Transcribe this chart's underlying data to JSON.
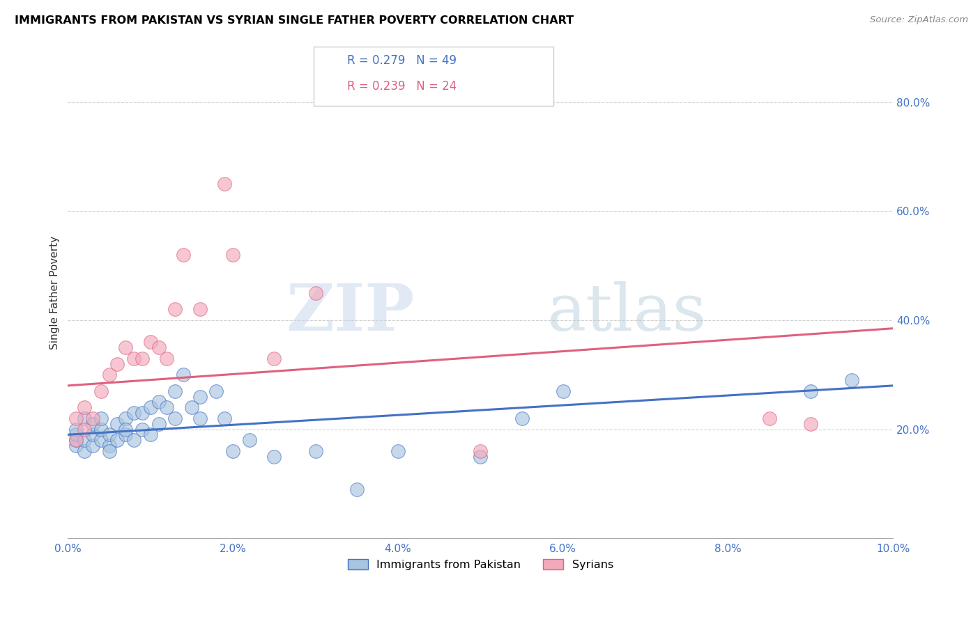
{
  "title": "IMMIGRANTS FROM PAKISTAN VS SYRIAN SINGLE FATHER POVERTY CORRELATION CHART",
  "source": "Source: ZipAtlas.com",
  "ylabel": "Single Father Poverty",
  "xlim": [
    0.0,
    0.1
  ],
  "ylim": [
    0.0,
    0.9
  ],
  "xticks": [
    0.0,
    0.02,
    0.04,
    0.06,
    0.08,
    0.1
  ],
  "yticks_right": [
    0.2,
    0.4,
    0.6,
    0.8
  ],
  "r_pakistan": 0.279,
  "n_pakistan": 49,
  "r_syrian": 0.239,
  "n_syrian": 24,
  "color_pakistan": "#a8c4e0",
  "color_syrian": "#f2aabb",
  "color_pakistan_line": "#4472c4",
  "color_syrian_line": "#e06080",
  "color_axis_labels": "#4472c4",
  "legend_label_pakistan": "Immigrants from Pakistan",
  "legend_label_syrian": "Syrians",
  "watermark_zip": "ZIP",
  "watermark_atlas": "atlas",
  "pakistan_x": [
    0.001,
    0.001,
    0.001,
    0.001,
    0.002,
    0.002,
    0.002,
    0.003,
    0.003,
    0.003,
    0.004,
    0.004,
    0.004,
    0.005,
    0.005,
    0.005,
    0.006,
    0.006,
    0.007,
    0.007,
    0.007,
    0.008,
    0.008,
    0.009,
    0.009,
    0.01,
    0.01,
    0.011,
    0.011,
    0.012,
    0.013,
    0.013,
    0.014,
    0.015,
    0.016,
    0.016,
    0.018,
    0.019,
    0.02,
    0.022,
    0.025,
    0.03,
    0.035,
    0.04,
    0.05,
    0.055,
    0.06,
    0.09,
    0.095
  ],
  "pakistan_y": [
    0.17,
    0.18,
    0.19,
    0.2,
    0.16,
    0.18,
    0.22,
    0.17,
    0.19,
    0.21,
    0.18,
    0.2,
    0.22,
    0.17,
    0.19,
    0.16,
    0.18,
    0.21,
    0.19,
    0.22,
    0.2,
    0.23,
    0.18,
    0.2,
    0.23,
    0.19,
    0.24,
    0.21,
    0.25,
    0.24,
    0.27,
    0.22,
    0.3,
    0.24,
    0.26,
    0.22,
    0.27,
    0.22,
    0.16,
    0.18,
    0.15,
    0.16,
    0.09,
    0.16,
    0.15,
    0.22,
    0.27,
    0.27,
    0.29
  ],
  "syrian_x": [
    0.001,
    0.001,
    0.002,
    0.002,
    0.003,
    0.004,
    0.005,
    0.006,
    0.007,
    0.008,
    0.009,
    0.01,
    0.011,
    0.012,
    0.013,
    0.014,
    0.016,
    0.019,
    0.02,
    0.025,
    0.03,
    0.05,
    0.085,
    0.09
  ],
  "syrian_y": [
    0.18,
    0.22,
    0.2,
    0.24,
    0.22,
    0.27,
    0.3,
    0.32,
    0.35,
    0.33,
    0.33,
    0.36,
    0.35,
    0.33,
    0.42,
    0.52,
    0.42,
    0.65,
    0.52,
    0.33,
    0.45,
    0.16,
    0.22,
    0.21
  ]
}
